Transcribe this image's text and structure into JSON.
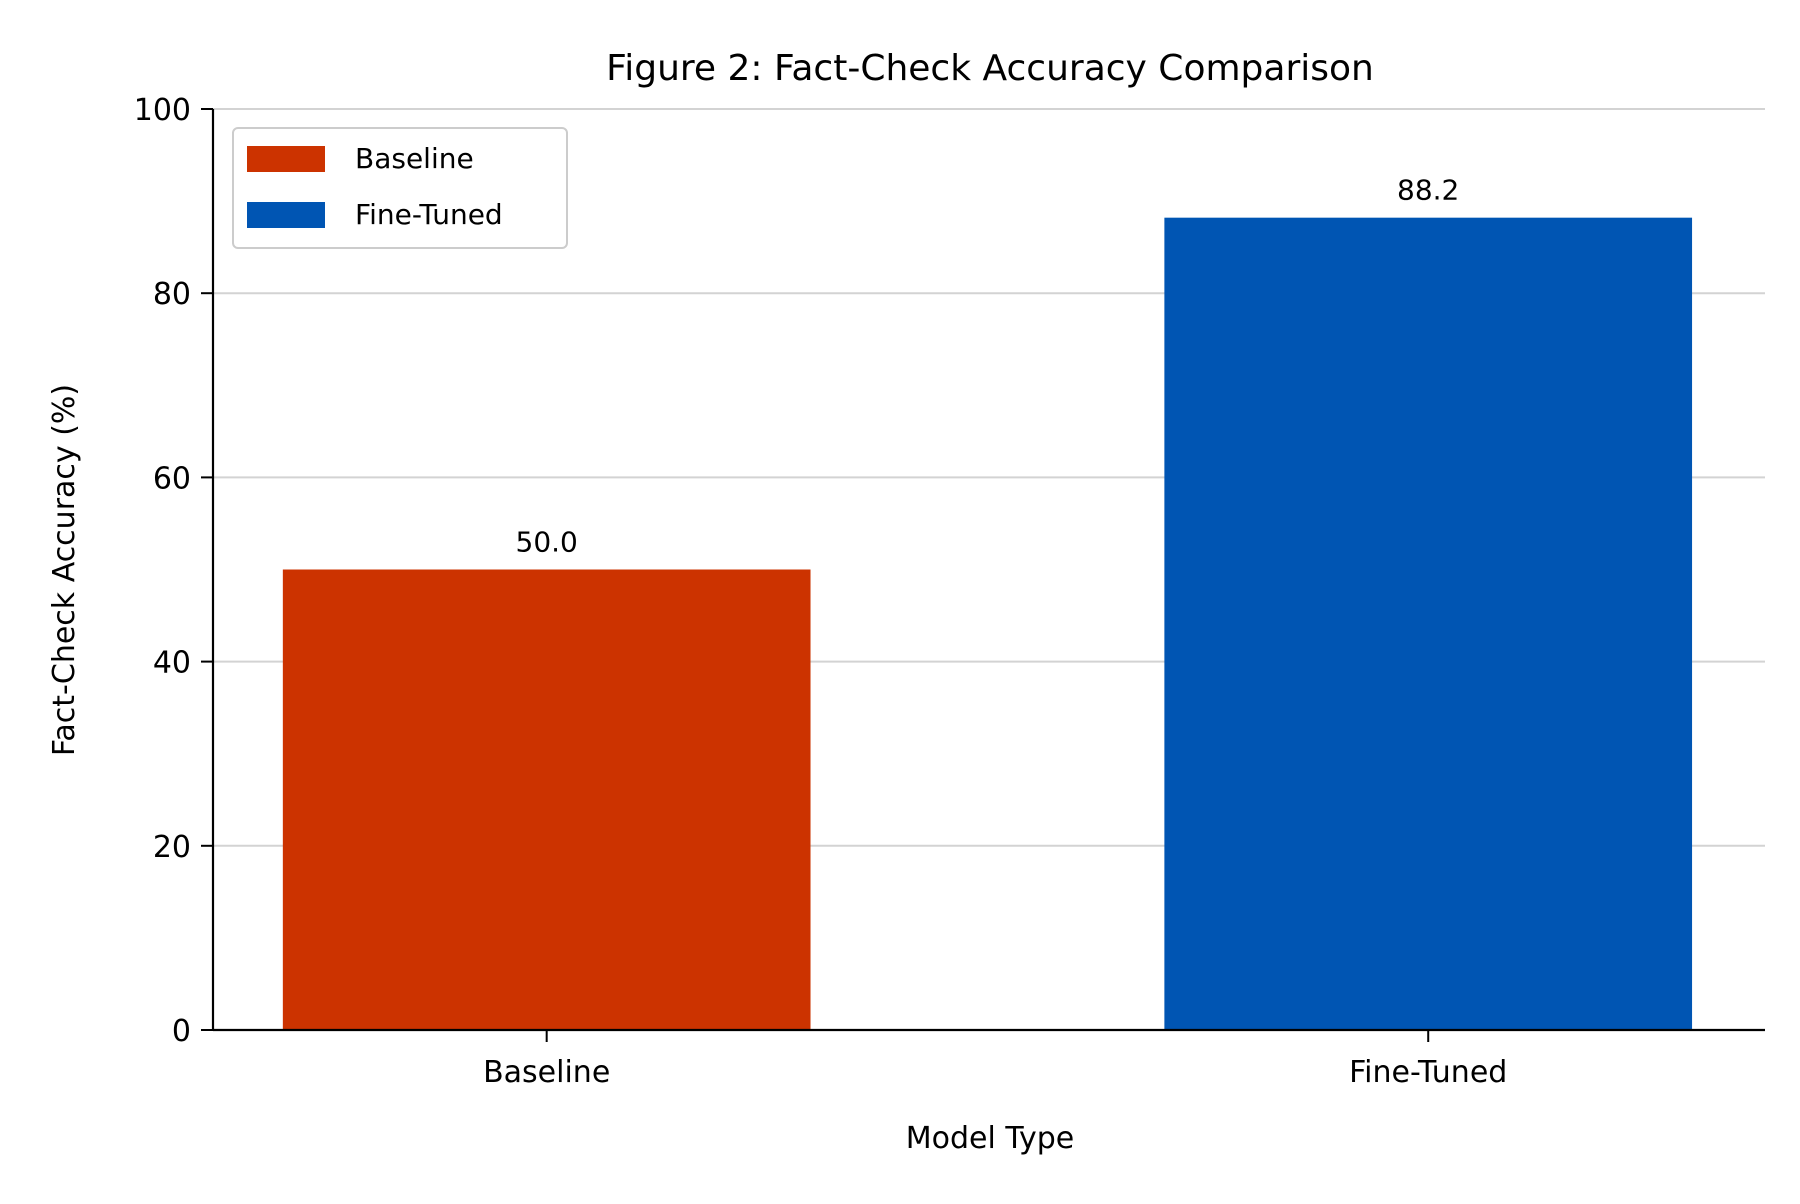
{
  "chart_data": {
    "type": "bar",
    "title": "Figure 2: Fact-Check Accuracy Comparison",
    "xlabel": "Model Type",
    "ylabel": "Fact-Check Accuracy (%)",
    "categories": [
      "Baseline",
      "Fine-Tuned"
    ],
    "values": [
      50.0,
      88.2
    ],
    "value_labels": [
      "50.0",
      "88.2"
    ],
    "colors": [
      "#cc3300",
      "#0055b3"
    ],
    "ylim": [
      0,
      100
    ],
    "yticks": [
      0,
      20,
      40,
      60,
      80,
      100
    ],
    "ytick_labels": [
      "0",
      "20",
      "40",
      "60",
      "80",
      "100"
    ],
    "grid": "horizontal",
    "legend": {
      "placement": "top-left",
      "entries": [
        {
          "label": "Baseline",
          "color": "#cc3300"
        },
        {
          "label": "Fine-Tuned",
          "color": "#0055b3"
        }
      ]
    }
  }
}
